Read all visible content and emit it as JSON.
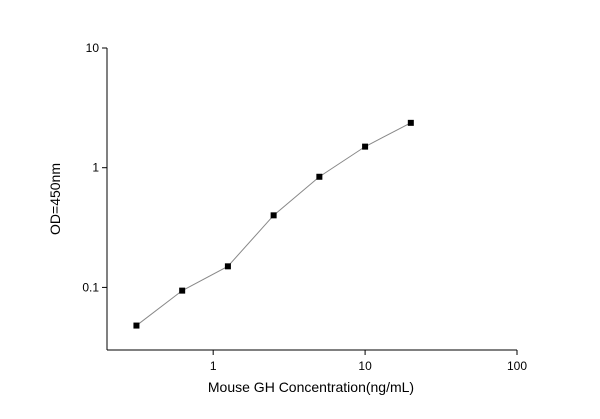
{
  "chart_data": {
    "type": "line",
    "x_label": "Mouse GH Concentration(ng/mL)",
    "y_label": "OD=450nm",
    "x": [
      0.3125,
      0.625,
      1.25,
      2.5,
      5,
      10,
      20
    ],
    "series": [
      {
        "color": "#000000",
        "line_color": "#888888",
        "values": [
          0.048,
          0.094,
          0.15,
          0.4,
          0.84,
          1.5,
          2.37
        ]
      }
    ],
    "xlim": [
      0.2,
      100
    ],
    "xticks": [
      1,
      10,
      100
    ],
    "ylim": [
      0.03,
      10
    ],
    "yticks": [
      0.1,
      1,
      10
    ],
    "x_log": true,
    "y_log": true,
    "grid": false
  }
}
